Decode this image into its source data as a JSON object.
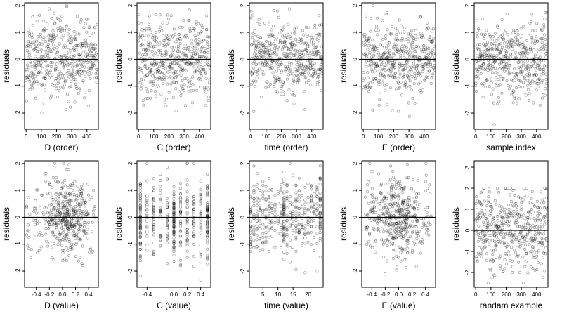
{
  "chart_data": [
    {
      "type": "scatter",
      "panel": "D (order)",
      "xlabel": "D (order)",
      "ylabel": "residuals",
      "xlim": [
        -10,
        475
      ],
      "ylim": [
        -2.6,
        2.1
      ],
      "xticks": [
        0,
        100,
        200,
        300,
        400
      ],
      "yticks": [
        -2,
        -1,
        0,
        1,
        2
      ],
      "zero_line": true,
      "gen": {
        "kind": "order",
        "n": 470,
        "sd": 0.7,
        "seed": 11
      }
    },
    {
      "type": "scatter",
      "panel": "C (order)",
      "xlabel": "C (order)",
      "ylabel": "residuals",
      "xlim": [
        -10,
        475
      ],
      "ylim": [
        -2.6,
        2.1
      ],
      "xticks": [
        0,
        100,
        200,
        300,
        400
      ],
      "yticks": [
        -2,
        -1,
        0,
        1,
        2
      ],
      "zero_line": true,
      "gen": {
        "kind": "order",
        "n": 470,
        "sd": 0.7,
        "seed": 12
      }
    },
    {
      "type": "scatter",
      "panel": "time (order)",
      "xlabel": "time (order)",
      "ylabel": "residuals",
      "xlim": [
        -10,
        475
      ],
      "ylim": [
        -2.6,
        2.1
      ],
      "xticks": [
        0,
        100,
        200,
        300,
        400
      ],
      "yticks": [
        -2,
        -1,
        0,
        1,
        2
      ],
      "zero_line": true,
      "gen": {
        "kind": "order",
        "n": 470,
        "sd": 0.7,
        "seed": 13
      }
    },
    {
      "type": "scatter",
      "panel": "E (order)",
      "xlabel": "E (order)",
      "ylabel": "residuals",
      "xlim": [
        -10,
        475
      ],
      "ylim": [
        -2.6,
        2.1
      ],
      "xticks": [
        0,
        100,
        200,
        300,
        400
      ],
      "yticks": [
        -2,
        -1,
        0,
        1,
        2
      ],
      "zero_line": true,
      "gen": {
        "kind": "order",
        "n": 470,
        "sd": 0.7,
        "seed": 14
      }
    },
    {
      "type": "scatter",
      "panel": "sample index",
      "xlabel": "sample index",
      "ylabel": "residuals",
      "xlim": [
        -10,
        475
      ],
      "ylim": [
        -2.6,
        2.1
      ],
      "xticks": [
        0,
        100,
        200,
        300,
        400
      ],
      "yticks": [
        -2,
        -1,
        0,
        1,
        2
      ],
      "zero_line": true,
      "gen": {
        "kind": "order",
        "n": 470,
        "sd": 0.7,
        "seed": 15
      }
    },
    {
      "type": "scatter",
      "panel": "D (value)",
      "xlabel": "D (value)",
      "ylabel": "residuals",
      "xlim": [
        -0.58,
        0.55
      ],
      "ylim": [
        -2.6,
        2.1
      ],
      "xticks": [
        -0.4,
        -0.2,
        0.0,
        0.2,
        0.4
      ],
      "xtick_labels": [
        "-0.4",
        "-0.2",
        "0.0",
        "0.2",
        "0.4"
      ],
      "yticks": [
        -2,
        -1,
        0,
        1,
        2
      ],
      "zero_line": true,
      "gen": {
        "kind": "value",
        "n": 470,
        "sd": 0.7,
        "seed": 21,
        "xrange": [
          -0.55,
          0.5
        ],
        "cluster": [
          0,
          0.2
        ],
        "cluster_sd": 0.12
      }
    },
    {
      "type": "scatter",
      "panel": "C (value)",
      "xlabel": "C (value)",
      "ylabel": "residuals",
      "xlim": [
        -0.55,
        0.55
      ],
      "ylim": [
        -2.6,
        2.1
      ],
      "xticks": [
        -0.4,
        0.0,
        0.2,
        0.4
      ],
      "xtick_labels": [
        "-0.4",
        "0.0",
        "0.2",
        "0.4"
      ],
      "yticks": [
        -2,
        -1,
        0,
        1,
        2
      ],
      "zero_line": true,
      "gen": {
        "kind": "discrete",
        "n": 470,
        "sd": 0.7,
        "seed": 22,
        "levels": [
          -0.5,
          -0.4,
          -0.3,
          -0.2,
          -0.1,
          0.0,
          0.1,
          0.2,
          0.3,
          0.4,
          0.5
        ],
        "weights": [
          4,
          2,
          2,
          2,
          2,
          4,
          2,
          2,
          2,
          2,
          4
        ]
      }
    },
    {
      "type": "scatter",
      "panel": "time (value)",
      "xlabel": "time (value)",
      "ylabel": "residuals",
      "xlim": [
        0.5,
        25
      ],
      "ylim": [
        -2.6,
        2.1
      ],
      "xticks": [
        5,
        10,
        15,
        20
      ],
      "yticks": [
        -2,
        -1,
        0,
        1,
        2
      ],
      "zero_line": true,
      "gen": {
        "kind": "discrete",
        "n": 470,
        "sd": 0.7,
        "seed": 23,
        "levels": [
          1,
          2,
          3,
          4,
          5,
          6,
          7,
          8,
          9,
          10,
          11,
          12,
          13,
          14,
          15,
          16,
          17,
          18,
          19,
          20,
          21,
          22,
          23,
          24
        ],
        "weights": [
          1,
          1,
          1,
          1,
          1,
          1,
          1,
          1,
          1,
          1,
          1,
          4,
          1,
          1,
          1,
          1,
          1,
          1,
          1,
          1,
          1,
          1,
          1,
          2
        ]
      }
    },
    {
      "type": "scatter",
      "panel": "E (value)",
      "xlabel": "E (value)",
      "ylabel": "residuals",
      "xlim": [
        -0.55,
        0.55
      ],
      "ylim": [
        -2.6,
        2.1
      ],
      "xticks": [
        -0.4,
        -0.2,
        0.0,
        0.2,
        0.4
      ],
      "xtick_labels": [
        "-0.4",
        "-0.2",
        "0.0",
        "0.2",
        "0.4"
      ],
      "yticks": [
        -2,
        -1,
        0,
        1,
        2
      ],
      "zero_line": true,
      "gen": {
        "kind": "value",
        "n": 470,
        "sd": 0.7,
        "seed": 24,
        "xrange": [
          -0.5,
          0.5
        ],
        "cluster": [
          -0.1,
          0.05
        ],
        "cluster_sd": 0.15
      }
    },
    {
      "type": "scatter",
      "panel": "randam example",
      "xlabel": "randam example",
      "ylabel": "residuals",
      "xlim": [
        -10,
        475
      ],
      "ylim": [
        -2.7,
        3.3
      ],
      "xticks": [
        0,
        100,
        200,
        300,
        400
      ],
      "yticks": [
        -2,
        -1,
        0,
        1,
        2,
        3
      ],
      "zero_line": true,
      "gen": {
        "kind": "order",
        "n": 470,
        "sd": 1.0,
        "seed": 25
      }
    }
  ]
}
